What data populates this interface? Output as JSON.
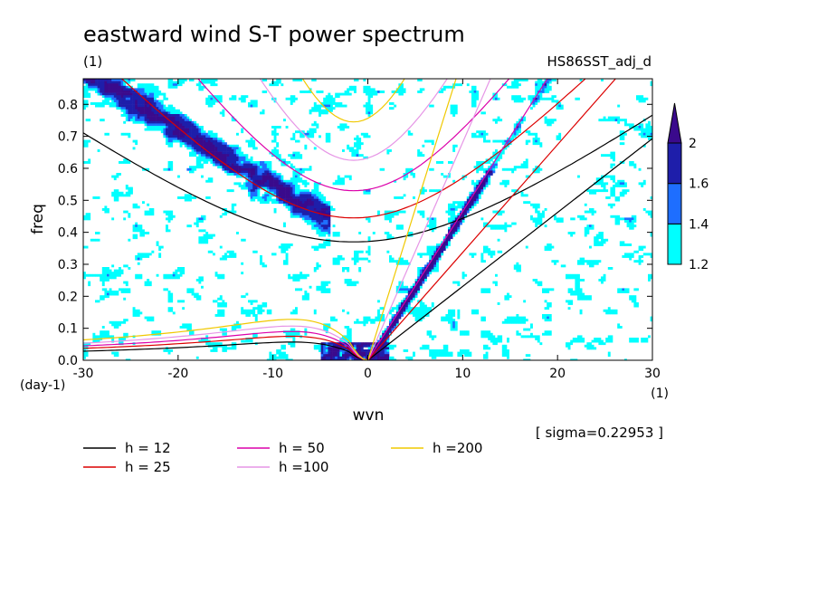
{
  "chart_data": {
    "type": "heatmap",
    "title": "eastward wind S-T power spectrum",
    "subtitle_left": "(1)",
    "subtitle_right": "HS86SST_adj_d",
    "xlabel": "wvn",
    "ylabel": "freq",
    "x_unit": "(1)",
    "y_unit": "(day-1)",
    "xlim": [
      -30,
      30
    ],
    "ylim": [
      0,
      0.88
    ],
    "x_ticks": [
      -30,
      -20,
      -10,
      0,
      10,
      20,
      30
    ],
    "x_tick_labels": [
      "-30",
      "-20",
      "-10",
      "0",
      "10",
      "20",
      "30"
    ],
    "y_ticks": [
      0,
      0.1,
      0.2,
      0.3,
      0.4,
      0.5,
      0.6,
      0.7,
      0.8
    ],
    "y_tick_labels": [
      "0.0",
      "0.1",
      "0.2",
      "0.3",
      "0.4",
      "0.5",
      "0.6",
      "0.7",
      "0.8"
    ],
    "annotation": "[ sigma=0.22953 ]",
    "colorbar": {
      "levels": [
        1.2,
        1.4,
        1.6,
        2
      ],
      "level_labels": [
        "1.2",
        "1.4",
        "1.6",
        "2"
      ],
      "colors": [
        "#00ffff",
        "#1e6eff",
        "#1e1eaa",
        "#3a0a8c"
      ]
    },
    "dispersion_curves": [
      {
        "name": "h = 12",
        "equivalent_depth": 12,
        "color": "#000000"
      },
      {
        "name": "h = 25",
        "equivalent_depth": 25,
        "color": "#dc0000"
      },
      {
        "name": "h = 50",
        "equivalent_depth": 50,
        "color": "#dc00aa"
      },
      {
        "name": "h =100",
        "equivalent_depth": 100,
        "color": "#e696e6"
      },
      {
        "name": "h =200",
        "equivalent_depth": 200,
        "color": "#f0c800"
      }
    ],
    "kelvin_wave_slope_freq_per_wvn": {
      "h = 12": 0.0231,
      "h = 25": 0.0337,
      "h = 50": 0.0465,
      "h =100": 0.0681,
      "h =200": 0.0946
    },
    "kelvin_wave_onset_wvn": 0,
    "er_wave_peak": {
      "wvn": -8,
      "freq": {
        "h = 12": 0.057,
        "h = 25": 0.075,
        "h = 50": 0.09,
        "h =100": 0.107,
        "h =200": 0.128
      }
    },
    "ig_wave_min_freq": {
      "h = 12": 0.37,
      "h = 25": 0.445,
      "h = 50": 0.53,
      "h =100": 0.625,
      "h =200": 0.745
    },
    "spectral_power_regions": [
      {
        "description": "Kelvin band",
        "wvn_range": [
          0,
          11
        ],
        "freq_range": [
          0,
          0.58
        ],
        "max_level": 2
      },
      {
        "description": "westward IG band",
        "wvn_range": [
          -27,
          -5
        ],
        "freq_range": [
          0.4,
          0.88
        ],
        "max_level": 2
      },
      {
        "description": "low-freq Rossby region",
        "wvn_range": [
          -5,
          2
        ],
        "freq_range": [
          0,
          0.05
        ],
        "max_level": 2
      }
    ]
  }
}
